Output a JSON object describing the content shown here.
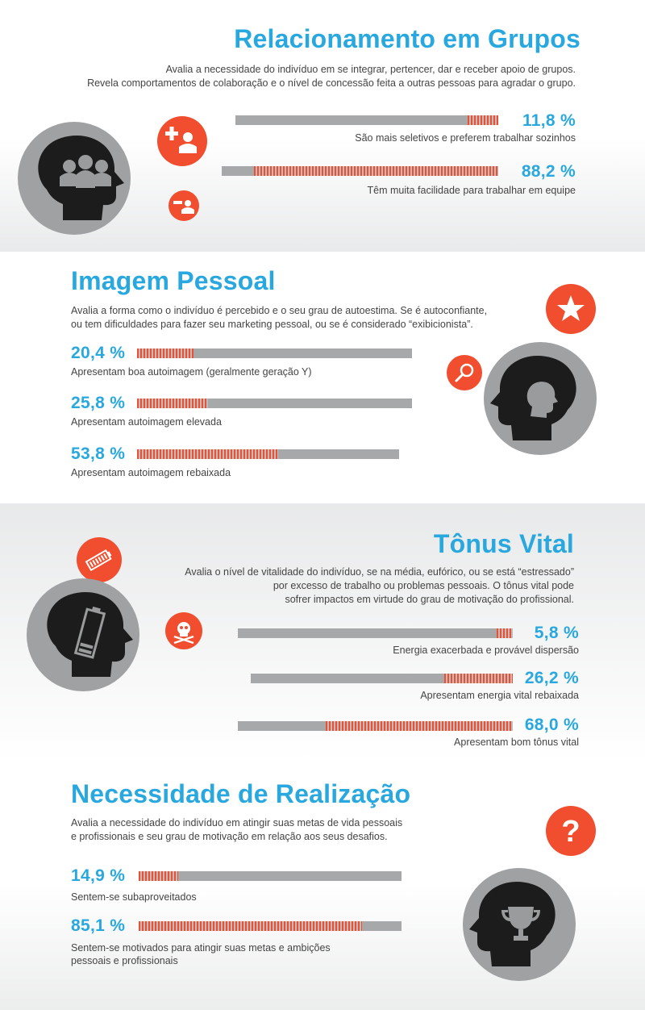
{
  "colors": {
    "accent_blue": "#29a8df",
    "accent_orange": "#f04e2f",
    "bar_gray": "#a7a8aa",
    "head_dark": "#1c1c1c",
    "circle_gray": "#a0a1a3"
  },
  "sections": [
    {
      "title": "Relacionamento em Grupos",
      "description": [
        "Avalia a necessidade do indivíduo em se integrar, pertencer, dar e receber apoio de grupos.",
        "Revela comportamentos de colaboração e o nível de concessão feita a outras pessoas para agradar o grupo."
      ],
      "icons": [
        "group-of-people-head-icon",
        "add-person-icon",
        "remove-person-icon"
      ]
    },
    {
      "title": "Imagem Pessoal",
      "description": [
        "Avalia a forma como o indivíduo é percebido e o seu grau de autoestima. Se é autoconfiante,",
        "ou tem dificuldades para fazer seu marketing pessoal, ou se é considerado “exibicionista”."
      ],
      "icons": [
        "self-image-head-icon",
        "star-icon",
        "magnifier-icon"
      ]
    },
    {
      "title": "Tônus Vital",
      "description": [
        "Avalia o nível de vitalidade do indivíduo, se na média, eufórico, ou se está “estressado”",
        "por excesso de trabalho ou problemas pessoais. O tônus vital pode",
        "sofrer impactos em virtude do grau de motivação do profissional."
      ],
      "icons": [
        "battery-head-icon",
        "full-battery-icon",
        "skull-icon"
      ]
    },
    {
      "title": "Necessidade de Realização",
      "description": [
        "Avalia a necessidade do indivíduo em atingir suas metas de vida pessoais",
        "e profissionais e seu grau de motivação em relação aos seus desafios."
      ],
      "icons": [
        "trophy-head-icon",
        "question-mark-icon"
      ]
    }
  ],
  "chart_data": [
    {
      "type": "bar",
      "title": "Relacionamento em Grupos",
      "unit": "%",
      "categories": [
        "São mais seletivos e preferem trabalhar sozinhos",
        "Têm muita facilidade para trabalhar em equipe"
      ],
      "values": [
        11.8,
        88.2
      ],
      "value_labels": [
        "11,8 %",
        "88,2 %"
      ],
      "ylim": [
        0,
        100
      ]
    },
    {
      "type": "bar",
      "title": "Imagem Pessoal",
      "unit": "%",
      "categories": [
        "Apresentam boa autoimagem (geralmente geração Y)",
        "Apresentam autoimagem elevada",
        "Apresentam autoimagem rebaixada"
      ],
      "values": [
        20.4,
        25.8,
        53.8
      ],
      "value_labels": [
        "20,4 %",
        "25,8 %",
        "53,8 %"
      ],
      "ylim": [
        0,
        100
      ]
    },
    {
      "type": "bar",
      "title": "Tônus Vital",
      "unit": "%",
      "categories": [
        "Energia exacerbada e provável dispersão",
        "Apresentam energia vital rebaixada",
        "Apresentam bom tônus vital"
      ],
      "values": [
        5.8,
        26.2,
        68.0
      ],
      "value_labels": [
        "5,8 %",
        "26,2 %",
        "68,0 %"
      ],
      "ylim": [
        0,
        100
      ]
    },
    {
      "type": "bar",
      "title": "Necessidade de Realização",
      "unit": "%",
      "categories": [
        "Sentem-se subaproveitados",
        "Sentem-se motivados para atingir suas metas e ambições pessoais e profissionais"
      ],
      "category_lines": [
        [
          "Sentem-se subaproveitados"
        ],
        [
          "Sentem-se motivados para atingir suas metas e ambições",
          "pessoais e profissionais"
        ]
      ],
      "values": [
        14.9,
        85.1
      ],
      "value_labels": [
        "14,9 %",
        "85,1 %"
      ],
      "ylim": [
        0,
        100
      ]
    }
  ]
}
